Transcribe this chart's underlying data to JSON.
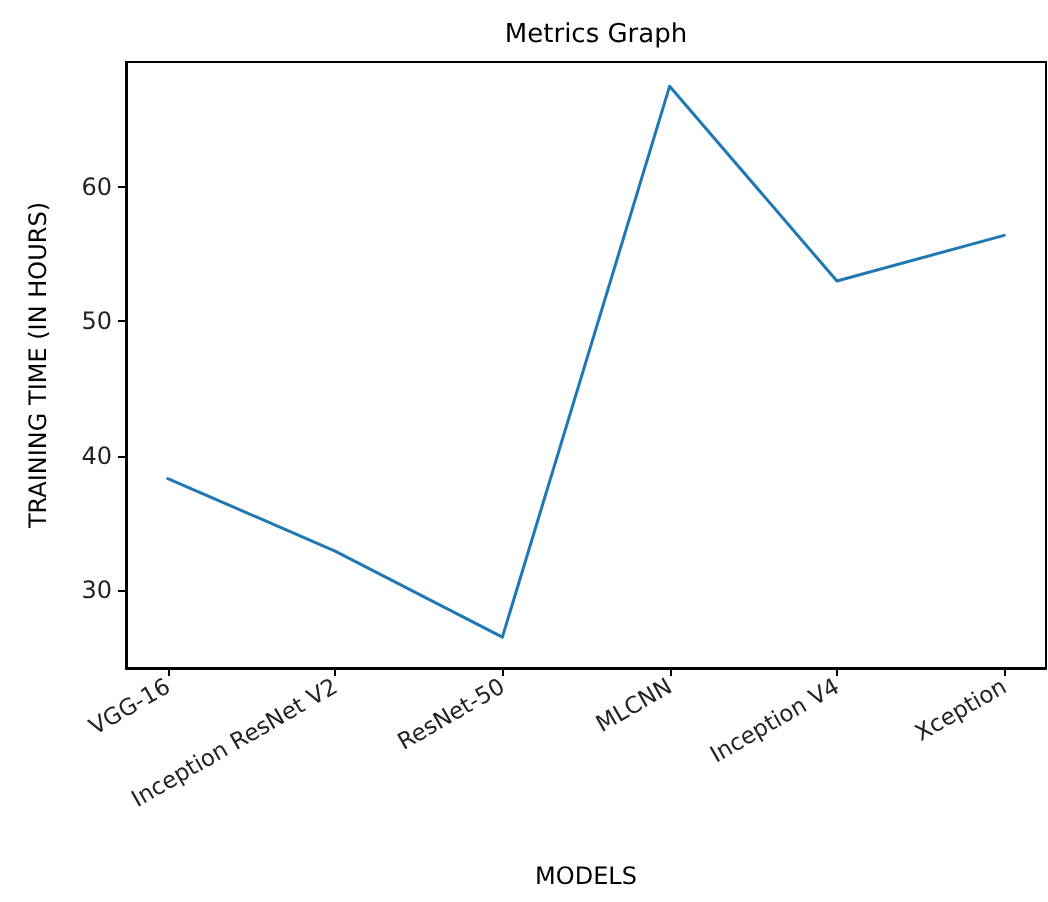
{
  "chart_data": {
    "type": "line",
    "title": "Metrics Graph",
    "xlabel": "MODELS",
    "ylabel": "TRAINING TIME (IN HOURS)",
    "categories": [
      "VGG-16",
      "Inception ResNet V2",
      "ResNet-50",
      "MLCNN",
      "Inception V4",
      "Xception"
    ],
    "series": [
      {
        "color": "#1f77b4",
        "values": [
          38.3,
          32.9,
          26.5,
          67.5,
          53.0,
          56.4
        ]
      }
    ],
    "ylim": [
      24.2,
      69.3
    ],
    "yticks": [
      30,
      40,
      50,
      60
    ],
    "grid": false,
    "marker": "none",
    "line_style": "solid"
  }
}
